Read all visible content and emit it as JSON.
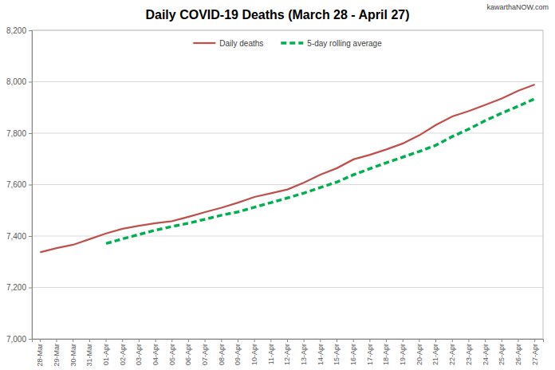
{
  "chart_data": {
    "type": "line",
    "title": "Daily COVID-19 Deaths (March 28 - April 27)",
    "annotations": [
      "kawarthaNOW.com"
    ],
    "categories": [
      "28-Mar",
      "29-Mar",
      "30-Mar",
      "31-Mar",
      "01-Apr",
      "02-Apr",
      "03-Apr",
      "04-Apr",
      "05-Apr",
      "06-Apr",
      "07-Apr",
      "08-Apr",
      "09-Apr",
      "10-Apr",
      "11-Apr",
      "12-Apr",
      "13-Apr",
      "14-Apr",
      "15-Apr",
      "16-Apr",
      "17-Apr",
      "18-Apr",
      "19-Apr",
      "20-Apr",
      "21-Apr",
      "22-Apr",
      "23-Apr",
      "24-Apr",
      "25-Apr",
      "26-Apr",
      "27-Apr"
    ],
    "series": [
      {
        "name": "Daily deaths",
        "color": "#c0504d",
        "line_style": "solid",
        "values": [
          7337,
          7353,
          7366,
          7388,
          7410,
          7428,
          7440,
          7450,
          7458,
          7475,
          7493,
          7510,
          7530,
          7552,
          7566,
          7581,
          7608,
          7639,
          7664,
          7698,
          7716,
          7737,
          7760,
          7792,
          7832,
          7865,
          7886,
          7910,
          7935,
          7965,
          7989
        ]
      },
      {
        "name": "5-day rolling average",
        "color": "#00b050",
        "line_style": "dashed",
        "values": [
          null,
          null,
          null,
          null,
          7371,
          7389,
          7406,
          7423,
          7437,
          7450,
          7465,
          7481,
          7494,
          7512,
          7530,
          7548,
          7567,
          7589,
          7610,
          7638,
          7662,
          7685,
          7707,
          7729,
          7753,
          7787,
          7816,
          7849,
          7878,
          7905,
          7934
        ]
      }
    ],
    "ylim": [
      7000,
      8200
    ],
    "yticks": [
      {
        "value": 7000,
        "label": "7,000"
      },
      {
        "value": 7200,
        "label": "7,200"
      },
      {
        "value": 7400,
        "label": "7,400"
      },
      {
        "value": 7600,
        "label": "7,600"
      },
      {
        "value": 7800,
        "label": "7,800"
      },
      {
        "value": 8000,
        "label": "8,000"
      },
      {
        "value": 8200,
        "label": "8,200"
      }
    ],
    "grid": true,
    "legend": "top"
  }
}
